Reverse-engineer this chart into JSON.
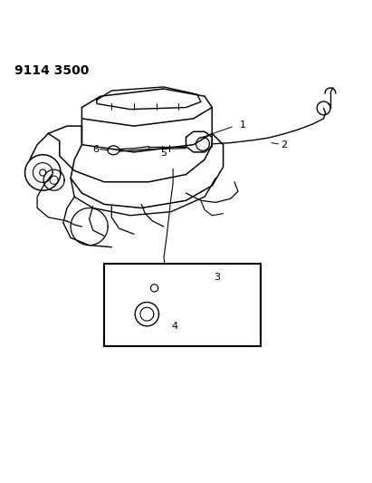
{
  "title": "9114 3500",
  "background_color": "#ffffff",
  "line_color": "#000000",
  "fig_width": 4.11,
  "fig_height": 5.33,
  "dpi": 100
}
